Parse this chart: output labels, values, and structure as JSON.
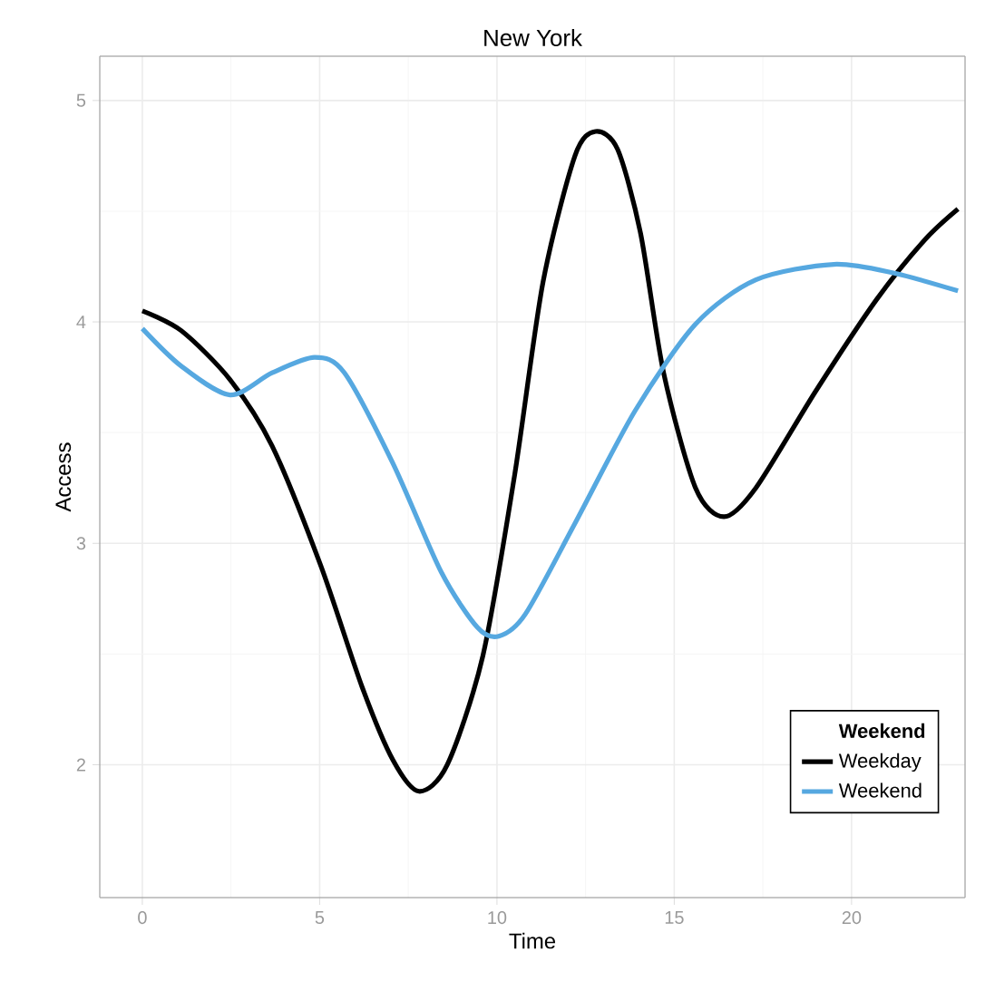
{
  "chart_data": {
    "type": "line",
    "title": "New York",
    "xlabel": "Time",
    "ylabel": "Access",
    "legend_title": "Weekend",
    "xlim": [
      -1.2,
      23.2
    ],
    "ylim": [
      1.4,
      5.2
    ],
    "xticks": [
      0,
      5,
      10,
      15,
      20
    ],
    "yticks": [
      2,
      3,
      4,
      5
    ],
    "grid": true,
    "legend": "bottom right",
    "marker": "none",
    "line_style": "solid",
    "series": [
      {
        "name": "Weekday",
        "color": "#000000",
        "x": [
          0,
          1.1,
          2.47,
          3.66,
          5.03,
          6.2,
          7.07,
          7.8,
          8.6,
          9.6,
          10.5,
          11.3,
          12.2,
          12.78,
          13.4,
          14.05,
          14.7,
          15.6,
          16.4,
          17.3,
          19.0,
          20.7,
          22.06,
          23
        ],
        "values": [
          4.05,
          3.96,
          3.74,
          3.44,
          2.9,
          2.35,
          2.02,
          1.88,
          2.0,
          2.49,
          3.31,
          4.18,
          4.75,
          4.86,
          4.78,
          4.4,
          3.77,
          3.25,
          3.12,
          3.25,
          3.69,
          4.1,
          4.37,
          4.51
        ]
      },
      {
        "name": "Weekend",
        "color": "#56a8e0",
        "x": [
          0,
          1.1,
          2.47,
          3.66,
          4.86,
          5.7,
          7.07,
          8.43,
          9.45,
          10.05,
          10.8,
          12.2,
          13.9,
          15.6,
          17.3,
          19.5,
          21.2,
          23
        ],
        "values": [
          3.97,
          3.8,
          3.67,
          3.77,
          3.84,
          3.77,
          3.36,
          2.87,
          2.62,
          2.58,
          2.68,
          3.09,
          3.6,
          3.99,
          4.19,
          4.26,
          4.22,
          4.14
        ]
      }
    ]
  }
}
